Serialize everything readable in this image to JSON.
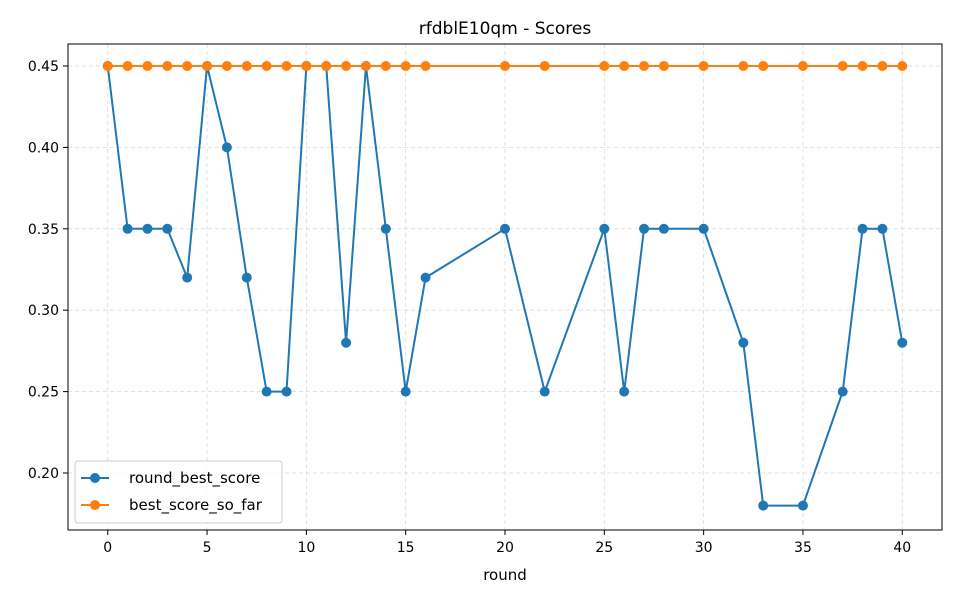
{
  "chart_data": {
    "type": "line",
    "title": "rfdblE10qm - Scores",
    "xlabel": "round",
    "ylabel": "",
    "xlim": [
      -2,
      42
    ],
    "ylim": [
      0.165,
      0.4635
    ],
    "xticks": [
      0,
      5,
      10,
      15,
      20,
      25,
      30,
      35,
      40
    ],
    "yticks": [
      0.2,
      0.25,
      0.3,
      0.35,
      0.4,
      0.45
    ],
    "grid": true,
    "legend_position": "lower-left",
    "series": [
      {
        "name": "round_best_score",
        "color": "#1f77b4",
        "x": [
          0,
          1,
          2,
          3,
          4,
          5,
          6,
          7,
          8,
          9,
          10,
          11,
          12,
          13,
          14,
          15,
          16,
          20,
          22,
          25,
          26,
          27,
          28,
          30,
          32,
          33,
          35,
          37,
          38,
          39,
          40
        ],
        "y": [
          0.45,
          0.35,
          0.35,
          0.35,
          0.32,
          0.45,
          0.4,
          0.32,
          0.25,
          0.25,
          0.45,
          0.45,
          0.28,
          0.45,
          0.35,
          0.25,
          0.32,
          0.35,
          0.25,
          0.35,
          0.25,
          0.35,
          0.35,
          0.35,
          0.28,
          0.18,
          0.18,
          0.25,
          0.35,
          0.35,
          0.28
        ]
      },
      {
        "name": "best_score_so_far",
        "color": "#ff7f0e",
        "x": [
          0,
          1,
          2,
          3,
          4,
          5,
          6,
          7,
          8,
          9,
          10,
          11,
          12,
          13,
          14,
          15,
          16,
          20,
          22,
          25,
          26,
          27,
          28,
          30,
          32,
          33,
          35,
          37,
          38,
          39,
          40
        ],
        "y": [
          0.45,
          0.45,
          0.45,
          0.45,
          0.45,
          0.45,
          0.45,
          0.45,
          0.45,
          0.45,
          0.45,
          0.45,
          0.45,
          0.45,
          0.45,
          0.45,
          0.45,
          0.45,
          0.45,
          0.45,
          0.45,
          0.45,
          0.45,
          0.45,
          0.45,
          0.45,
          0.45,
          0.45,
          0.45,
          0.45,
          0.45
        ]
      }
    ]
  }
}
